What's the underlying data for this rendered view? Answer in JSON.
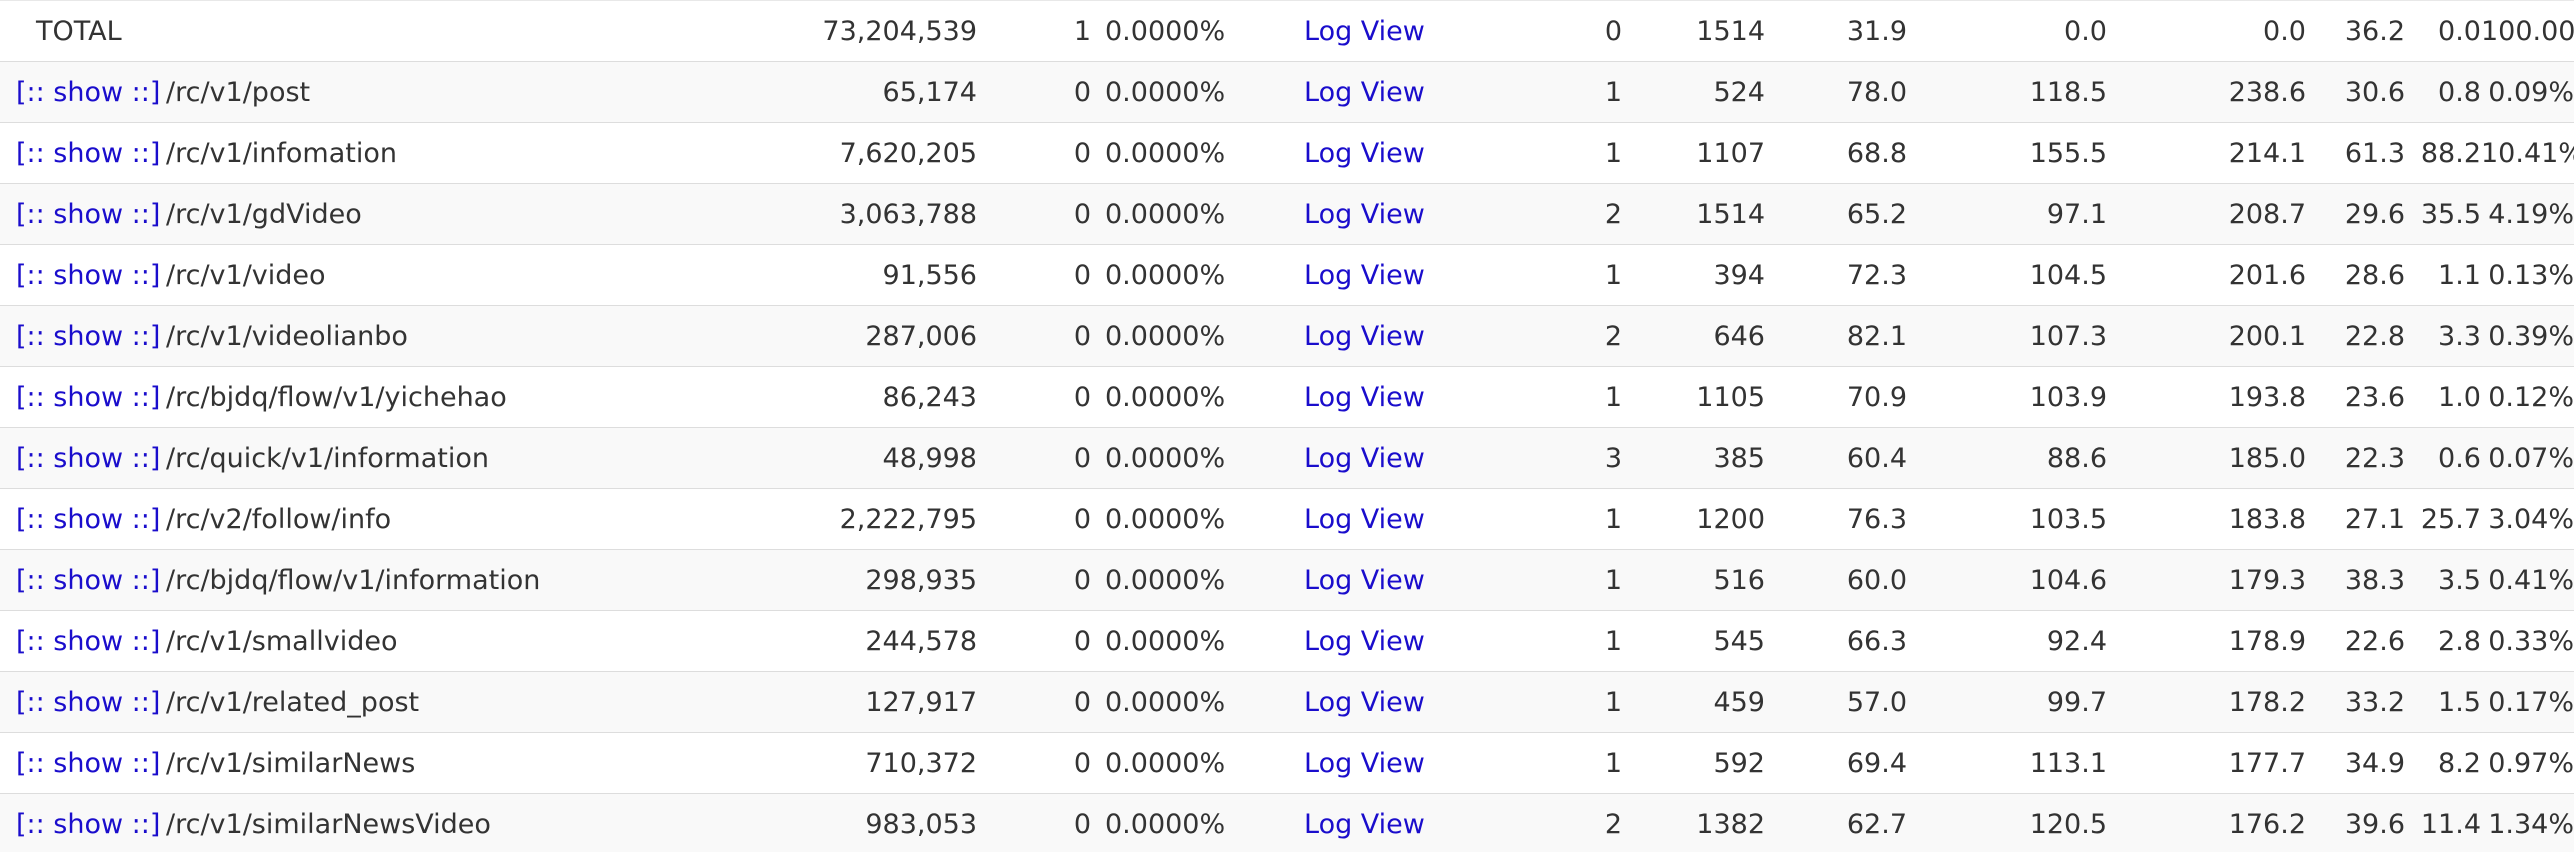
{
  "links": {
    "show": "[:: show ::]",
    "log_view": "Log View"
  },
  "total": {
    "label": "TOTAL",
    "count": "73,204,539",
    "failures": "1",
    "fail_pct": "0.0000%",
    "sample": "0",
    "max": "1514",
    "avg": "31.9",
    "c9": "0.0",
    "c10": "0.0",
    "c11": "36.2",
    "c12": "0.0",
    "percent": "100.00%"
  },
  "rows": [
    {
      "name": "/rc/v1/post",
      "count": "65,174",
      "failures": "0",
      "fail_pct": "0.0000%",
      "sample": "1",
      "max": "524",
      "avg": "78.0",
      "c9": "118.5",
      "c10": "238.6",
      "c11": "30.6",
      "c12": "0.8",
      "percent": "0.09%"
    },
    {
      "name": "/rc/v1/infomation",
      "count": "7,620,205",
      "failures": "0",
      "fail_pct": "0.0000%",
      "sample": "1",
      "max": "1107",
      "avg": "68.8",
      "c9": "155.5",
      "c10": "214.1",
      "c11": "61.3",
      "c12": "88.2",
      "percent": "10.41%"
    },
    {
      "name": "/rc/v1/gdVideo",
      "count": "3,063,788",
      "failures": "0",
      "fail_pct": "0.0000%",
      "sample": "2",
      "max": "1514",
      "avg": "65.2",
      "c9": "97.1",
      "c10": "208.7",
      "c11": "29.6",
      "c12": "35.5",
      "percent": "4.19%"
    },
    {
      "name": "/rc/v1/video",
      "count": "91,556",
      "failures": "0",
      "fail_pct": "0.0000%",
      "sample": "1",
      "max": "394",
      "avg": "72.3",
      "c9": "104.5",
      "c10": "201.6",
      "c11": "28.6",
      "c12": "1.1",
      "percent": "0.13%"
    },
    {
      "name": "/rc/v1/videolianbo",
      "count": "287,006",
      "failures": "0",
      "fail_pct": "0.0000%",
      "sample": "2",
      "max": "646",
      "avg": "82.1",
      "c9": "107.3",
      "c10": "200.1",
      "c11": "22.8",
      "c12": "3.3",
      "percent": "0.39%"
    },
    {
      "name": "/rc/bjdq/flow/v1/yichehao",
      "count": "86,243",
      "failures": "0",
      "fail_pct": "0.0000%",
      "sample": "1",
      "max": "1105",
      "avg": "70.9",
      "c9": "103.9",
      "c10": "193.8",
      "c11": "23.6",
      "c12": "1.0",
      "percent": "0.12%"
    },
    {
      "name": "/rc/quick/v1/information",
      "count": "48,998",
      "failures": "0",
      "fail_pct": "0.0000%",
      "sample": "3",
      "max": "385",
      "avg": "60.4",
      "c9": "88.6",
      "c10": "185.0",
      "c11": "22.3",
      "c12": "0.6",
      "percent": "0.07%"
    },
    {
      "name": "/rc/v2/follow/info",
      "count": "2,222,795",
      "failures": "0",
      "fail_pct": "0.0000%",
      "sample": "1",
      "max": "1200",
      "avg": "76.3",
      "c9": "103.5",
      "c10": "183.8",
      "c11": "27.1",
      "c12": "25.7",
      "percent": "3.04%"
    },
    {
      "name": "/rc/bjdq/flow/v1/information",
      "count": "298,935",
      "failures": "0",
      "fail_pct": "0.0000%",
      "sample": "1",
      "max": "516",
      "avg": "60.0",
      "c9": "104.6",
      "c10": "179.3",
      "c11": "38.3",
      "c12": "3.5",
      "percent": "0.41%"
    },
    {
      "name": "/rc/v1/smallvideo",
      "count": "244,578",
      "failures": "0",
      "fail_pct": "0.0000%",
      "sample": "1",
      "max": "545",
      "avg": "66.3",
      "c9": "92.4",
      "c10": "178.9",
      "c11": "22.6",
      "c12": "2.8",
      "percent": "0.33%"
    },
    {
      "name": "/rc/v1/related_post",
      "count": "127,917",
      "failures": "0",
      "fail_pct": "0.0000%",
      "sample": "1",
      "max": "459",
      "avg": "57.0",
      "c9": "99.7",
      "c10": "178.2",
      "c11": "33.2",
      "c12": "1.5",
      "percent": "0.17%"
    },
    {
      "name": "/rc/v1/similarNews",
      "count": "710,372",
      "failures": "0",
      "fail_pct": "0.0000%",
      "sample": "1",
      "max": "592",
      "avg": "69.4",
      "c9": "113.1",
      "c10": "177.7",
      "c11": "34.9",
      "c12": "8.2",
      "percent": "0.97%"
    },
    {
      "name": "/rc/v1/similarNewsVideo",
      "count": "983,053",
      "failures": "0",
      "fail_pct": "0.0000%",
      "sample": "2",
      "max": "1382",
      "avg": "62.7",
      "c9": "120.5",
      "c10": "176.2",
      "c11": "39.6",
      "c12": "11.4",
      "percent": "1.34%"
    }
  ]
}
